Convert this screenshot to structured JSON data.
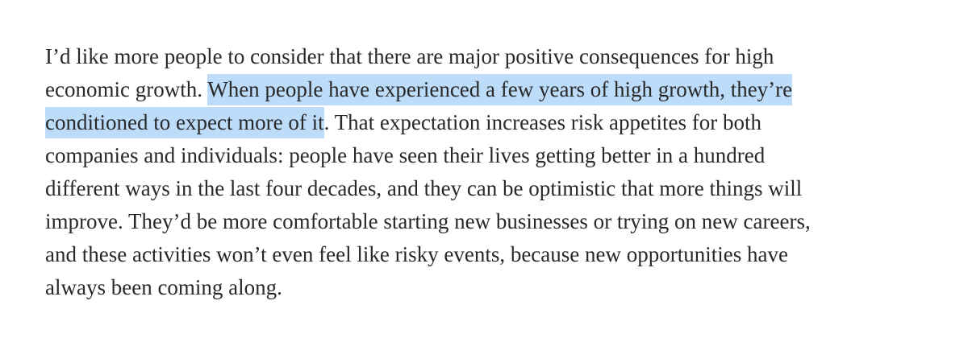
{
  "article": {
    "lines": [
      {
        "before": "I’d like more people to consider that there are major positive consequences for high",
        "highlight": "",
        "after": ""
      },
      {
        "before": "economic growth. ",
        "highlight": "When people have experienced a few years of high growth, they’re",
        "after": ""
      },
      {
        "before": "",
        "highlight": "conditioned to expect more of it",
        "after": ". That expectation increases risk appetites for both"
      },
      {
        "before": "companies and individuals: people have seen their lives getting better in a hundred",
        "highlight": "",
        "after": ""
      },
      {
        "before": "different ways in the last four decades, and they can be optimistic that more things will",
        "highlight": "",
        "after": ""
      },
      {
        "before": "improve. They’d be more comfortable starting new businesses or trying on new careers,",
        "highlight": "",
        "after": ""
      },
      {
        "before": "and these activities won’t even feel like risky events, because new opportunities have",
        "highlight": "",
        "after": ""
      },
      {
        "before": "always been coming along.",
        "highlight": "",
        "after": ""
      }
    ]
  },
  "colors": {
    "text": "#292929",
    "highlight": "#bddcfa",
    "background": "#ffffff"
  }
}
